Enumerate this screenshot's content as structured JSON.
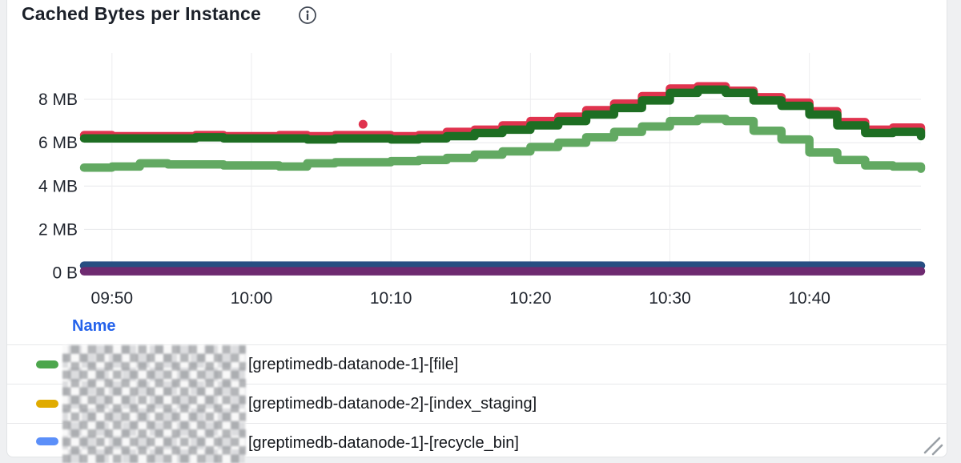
{
  "card": {
    "title": "Cached Bytes per Instance"
  },
  "legend": {
    "header": "Name",
    "header_color": "#2563eb",
    "rows": [
      {
        "color": "#4ca64c",
        "redacted_prefix": true,
        "label": "[greptimedb-datanode-1]-[file]"
      },
      {
        "color": "#e0ab00",
        "redacted_prefix": true,
        "label": "[greptimedb-datanode-2]-[index_staging]"
      },
      {
        "color": "#5b8ff9",
        "redacted_prefix": true,
        "label": "[greptimedb-datanode-1]-[recycle_bin]"
      }
    ]
  },
  "chart_data": {
    "type": "line",
    "title": "Cached Bytes per Instance",
    "line_style": "step-after",
    "grid": true,
    "grid_color": "#e8e9eb",
    "grid_color_vertical": "#ededef",
    "axis_text_color": "#21262f",
    "legend_position": "bottom-table",
    "y_unit": "MB",
    "ylim": [
      0,
      9.9
    ],
    "x_start": "09:48",
    "x_end": "10:48",
    "step_minutes": 2,
    "x_ticks": [
      {
        "min": 2,
        "label": "09:50"
      },
      {
        "min": 12,
        "label": "10:00"
      },
      {
        "min": 22,
        "label": "10:10"
      },
      {
        "min": 32,
        "label": "10:20"
      },
      {
        "min": 42,
        "label": "10:30"
      },
      {
        "min": 52,
        "label": "10:40"
      }
    ],
    "y_ticks": [
      {
        "value": 0,
        "label": "0 B"
      },
      {
        "value": 2,
        "label": "2 MB"
      },
      {
        "value": 4,
        "label": "4 MB"
      },
      {
        "value": 6,
        "label": "6 MB"
      },
      {
        "value": 8,
        "label": "8 MB"
      }
    ],
    "series": [
      {
        "name": "red",
        "color": "#e0334e",
        "values": [
          6.35,
          6.3,
          6.3,
          6.3,
          6.35,
          6.3,
          6.3,
          6.35,
          6.3,
          6.35,
          6.35,
          6.3,
          6.35,
          6.5,
          6.6,
          6.8,
          7.0,
          7.2,
          7.5,
          7.8,
          8.15,
          8.5,
          8.6,
          8.4,
          8.1,
          7.85,
          7.45,
          6.95,
          6.6,
          6.7,
          6.55
        ]
      },
      {
        "name": "dark-green",
        "color": "#1e6e23",
        "values": [
          6.2,
          6.2,
          6.2,
          6.2,
          6.25,
          6.2,
          6.2,
          6.2,
          6.15,
          6.2,
          6.2,
          6.15,
          6.2,
          6.3,
          6.45,
          6.6,
          6.8,
          7.0,
          7.3,
          7.6,
          7.95,
          8.3,
          8.45,
          8.3,
          7.95,
          7.7,
          7.3,
          6.8,
          6.45,
          6.5,
          6.3
        ]
      },
      {
        "name": "light-green",
        "color": "#62a962",
        "values": [
          4.85,
          4.9,
          5.05,
          5.0,
          5.0,
          4.95,
          4.95,
          4.9,
          5.05,
          5.1,
          5.1,
          5.15,
          5.2,
          5.3,
          5.45,
          5.6,
          5.8,
          6.0,
          6.25,
          6.5,
          6.75,
          7.0,
          7.1,
          7.0,
          6.55,
          6.15,
          5.55,
          5.2,
          4.95,
          4.9,
          4.8
        ]
      },
      {
        "name": "navy",
        "color": "#274e82",
        "values": [
          0.33,
          0.33,
          0.33,
          0.33,
          0.33,
          0.33,
          0.33,
          0.33,
          0.33,
          0.33,
          0.33,
          0.33,
          0.33,
          0.33,
          0.33,
          0.33,
          0.33,
          0.33,
          0.33,
          0.33,
          0.33,
          0.33,
          0.33,
          0.33,
          0.33,
          0.33,
          0.33,
          0.33,
          0.33,
          0.33,
          0.33
        ]
      },
      {
        "name": "purple",
        "color": "#6e2a70",
        "values": [
          0.07,
          0.07,
          0.07,
          0.07,
          0.07,
          0.07,
          0.07,
          0.07,
          0.07,
          0.07,
          0.07,
          0.07,
          0.07,
          0.07,
          0.07,
          0.07,
          0.07,
          0.07,
          0.07,
          0.07,
          0.07,
          0.07,
          0.07,
          0.07,
          0.07,
          0.07,
          0.07,
          0.07,
          0.07,
          0.07,
          0.07
        ]
      }
    ],
    "outliers": [
      {
        "series": "red",
        "minute": 20,
        "value": 6.85
      }
    ]
  },
  "icons": {
    "info": "info-icon",
    "resize": "resize-handle-icon",
    "resize_color": "#9aa0a6",
    "info_color": "#3c434f"
  }
}
